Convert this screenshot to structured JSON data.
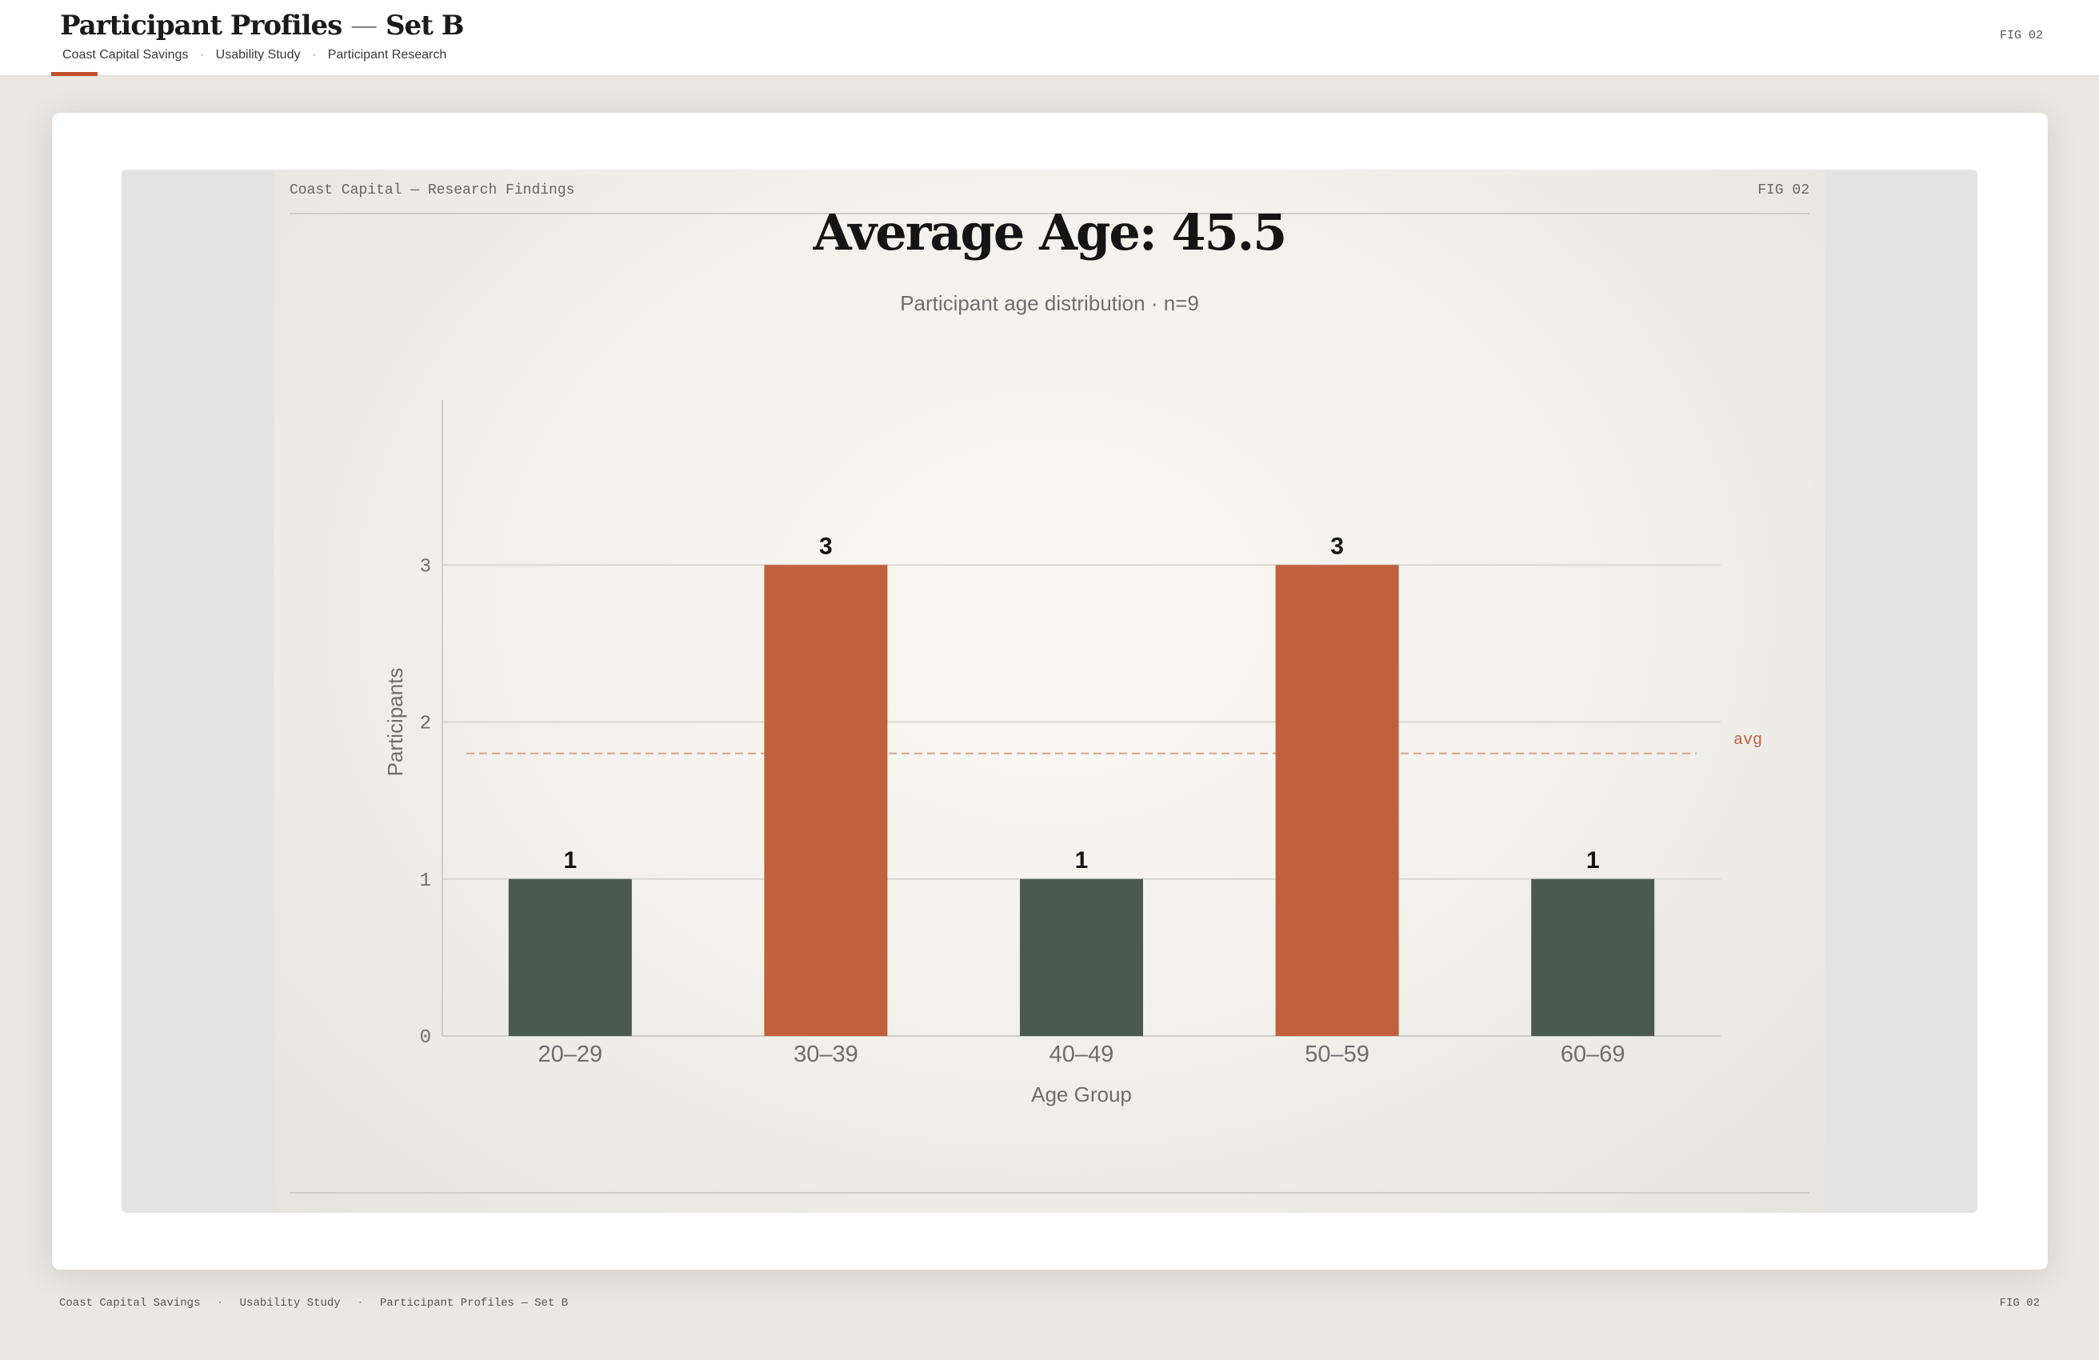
{
  "header": {
    "title": "Participant Profiles",
    "title_dash": "—",
    "title_suffix": "Set B",
    "crumbs": [
      "Coast Capital Savings",
      "Usability Study",
      "Participant Research"
    ],
    "crumb_sep": "·",
    "fig_label": "FIG 02"
  },
  "slide": {
    "head_left": "Coast Capital — Research Findings",
    "head_right": "FIG 02"
  },
  "footer": {
    "items": [
      "Coast Capital Savings",
      "Usability Study",
      "Participant Profiles — Set B"
    ],
    "sep": "·",
    "fig_label": "FIG 02"
  },
  "colors": {
    "accent": "#c0613e",
    "dark": "#4a5a4f",
    "avg_line": "#d9a48e"
  },
  "chart_data": {
    "type": "bar",
    "title": "Average Age: 45.5",
    "subtitle": "Participant age distribution · n=9",
    "xlabel": "Age Group",
    "ylabel": "Participants",
    "categories": [
      "20–29",
      "30–39",
      "40–49",
      "50–59",
      "60–69"
    ],
    "values": [
      1,
      3,
      1,
      3,
      1
    ],
    "highlighted": [
      false,
      true,
      false,
      true,
      false
    ],
    "ylim": [
      0,
      4
    ],
    "yticks": [
      0,
      1,
      2,
      3
    ],
    "grid": true,
    "reference_line": {
      "label": "avg",
      "value": 1.8
    }
  }
}
